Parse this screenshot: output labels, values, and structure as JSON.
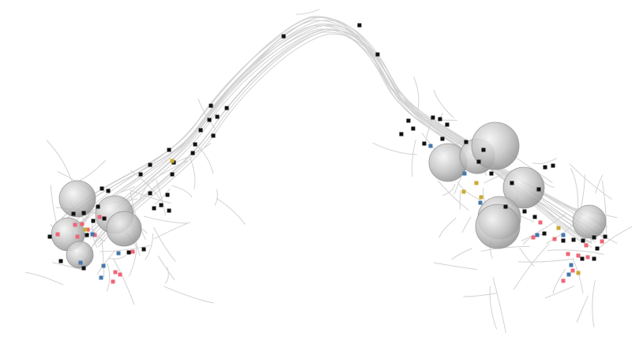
{
  "scene": {
    "kind": "3d-morphology-render",
    "background": "#ffffff",
    "colors": {
      "trace": "#d2d2d2",
      "marker_black": "#111111",
      "marker_pink": "#ee6677",
      "marker_blue": "#4477aa",
      "marker_gold": "#ccaa33",
      "sphere_light": "#f2f2f2",
      "sphere_mid": "#bdbdbd",
      "sphere_dark": "#8a8a8a"
    },
    "legend": "none",
    "axes": "none"
  }
}
